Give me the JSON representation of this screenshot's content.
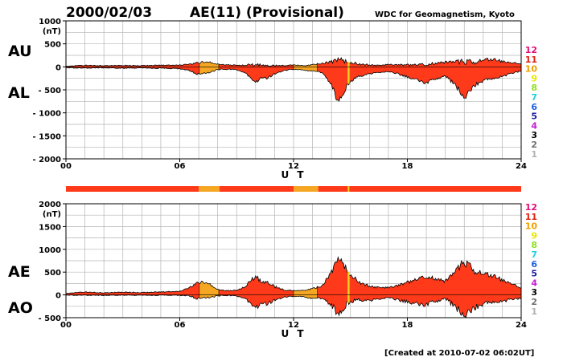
{
  "header": {
    "date": "2000/02/03",
    "title": "AE(11) (Provisional)",
    "source": "WDC for Geomagnetism, Kyoto"
  },
  "footer": {
    "created": "[Created at 2010-07-02 06:02UT]"
  },
  "colors": {
    "activity": "#ff3a1a",
    "quiet": "#f5a623",
    "marker": "#f0d020",
    "grid": "#b4b4b4"
  },
  "legend": {
    "levels": [
      {
        "label": "12",
        "color": "#e0107a"
      },
      {
        "label": "11",
        "color": "#e02010"
      },
      {
        "label": "10",
        "color": "#f0a000"
      },
      {
        "label": "9",
        "color": "#e8e800"
      },
      {
        "label": "8",
        "color": "#90e020"
      },
      {
        "label": "7",
        "color": "#20d0e0"
      },
      {
        "label": "6",
        "color": "#2060e0"
      },
      {
        "label": "5",
        "color": "#2020a0"
      },
      {
        "label": "4",
        "color": "#c020d0"
      },
      {
        "label": "3",
        "color": "#000000"
      },
      {
        "label": "2",
        "color": "#707070"
      },
      {
        "label": "1",
        "color": "#b0b0b0"
      }
    ]
  },
  "status_bar": {
    "segments": [
      {
        "from": 0,
        "to": 7,
        "level": "11"
      },
      {
        "from": 7,
        "to": 8.1,
        "level": "10"
      },
      {
        "from": 8.1,
        "to": 12,
        "level": "11"
      },
      {
        "from": 12,
        "to": 13.3,
        "level": "10"
      },
      {
        "from": 13.3,
        "to": 24,
        "level": "11"
      }
    ]
  },
  "chart_data": [
    {
      "type": "area",
      "name": "AU/AL",
      "upper_label": "AU",
      "lower_label": "AL",
      "unit": "(nT)",
      "xlabel": "U T",
      "xlim": [
        0,
        24
      ],
      "ylim": [
        -2000,
        1000
      ],
      "yticks": [
        1000,
        500,
        0,
        -500,
        -1000,
        -1500,
        -2000
      ],
      "xticks": [
        "00",
        "06",
        "12",
        "18",
        "24"
      ],
      "x": [
        0,
        1,
        2,
        3,
        4,
        5,
        6,
        6.5,
        7,
        7.5,
        8,
        8.5,
        9,
        9.5,
        10,
        10.3,
        10.6,
        11,
        11.5,
        12,
        12.5,
        13,
        13.5,
        14,
        14.3,
        14.6,
        15,
        15.5,
        16,
        16.5,
        17,
        17.5,
        18,
        18.5,
        19,
        19.5,
        20,
        20.5,
        21,
        21.5,
        22,
        22.5,
        23,
        23.5,
        24
      ],
      "upper": [
        20,
        30,
        25,
        30,
        25,
        35,
        40,
        60,
        90,
        110,
        60,
        40,
        35,
        40,
        50,
        40,
        30,
        25,
        30,
        40,
        25,
        40,
        80,
        110,
        140,
        130,
        100,
        60,
        40,
        30,
        50,
        40,
        45,
        40,
        60,
        80,
        100,
        110,
        120,
        100,
        150,
        160,
        120,
        90,
        70
      ],
      "lower": [
        -20,
        -25,
        -20,
        -30,
        -25,
        -30,
        -40,
        -80,
        -170,
        -130,
        -60,
        -50,
        -60,
        -150,
        -350,
        -230,
        -250,
        -150,
        -80,
        -50,
        -70,
        -90,
        -120,
        -380,
        -720,
        -580,
        -300,
        -200,
        -150,
        -120,
        -100,
        -150,
        -220,
        -280,
        -350,
        -260,
        -200,
        -380,
        -660,
        -420,
        -300,
        -250,
        -200,
        -150,
        -80
      ],
      "quiet_ranges": [
        [
          7,
          8.1
        ],
        [
          12,
          13.3
        ]
      ],
      "markers": [
        14.9
      ]
    },
    {
      "type": "area",
      "name": "AE/AO",
      "upper_label": "AE",
      "lower_label": "AO",
      "unit": "(nT)",
      "xlabel": "U T",
      "xlim": [
        0,
        24
      ],
      "ylim": [
        -500,
        2000
      ],
      "yticks": [
        2000,
        1500,
        1000,
        500,
        0,
        -500
      ],
      "xticks": [
        "00",
        "06",
        "12",
        "18",
        "24"
      ],
      "x": [
        0,
        1,
        2,
        3,
        4,
        5,
        6,
        6.5,
        7,
        7.5,
        8,
        8.5,
        9,
        9.5,
        10,
        10.3,
        10.6,
        11,
        11.5,
        12,
        12.5,
        13,
        13.5,
        14,
        14.3,
        14.6,
        15,
        15.5,
        16,
        16.5,
        17,
        17.5,
        18,
        18.5,
        19,
        19.5,
        20,
        20.5,
        21,
        21.5,
        22,
        22.5,
        23,
        23.5,
        24
      ],
      "upper": [
        40,
        60,
        45,
        60,
        50,
        65,
        80,
        160,
        280,
        260,
        120,
        90,
        100,
        200,
        420,
        280,
        290,
        180,
        110,
        90,
        100,
        130,
        200,
        500,
        760,
        680,
        450,
        270,
        190,
        160,
        160,
        200,
        280,
        330,
        420,
        350,
        300,
        500,
        740,
        540,
        460,
        420,
        330,
        250,
        150
      ],
      "lower": [
        -5,
        -5,
        -10,
        -5,
        -10,
        -5,
        -10,
        -20,
        -90,
        -60,
        -20,
        -10,
        -20,
        -100,
        -300,
        -180,
        -200,
        -110,
        -50,
        -30,
        -40,
        -80,
        -70,
        -220,
        -380,
        -300,
        -130,
        -110,
        -120,
        -90,
        -50,
        -110,
        -150,
        -200,
        -210,
        -140,
        -80,
        -250,
        -430,
        -300,
        -200,
        -150,
        -130,
        -110,
        -60
      ],
      "quiet_ranges": [
        [
          7,
          8.1
        ],
        [
          12,
          13.3
        ]
      ],
      "markers": [
        14.9
      ]
    }
  ]
}
